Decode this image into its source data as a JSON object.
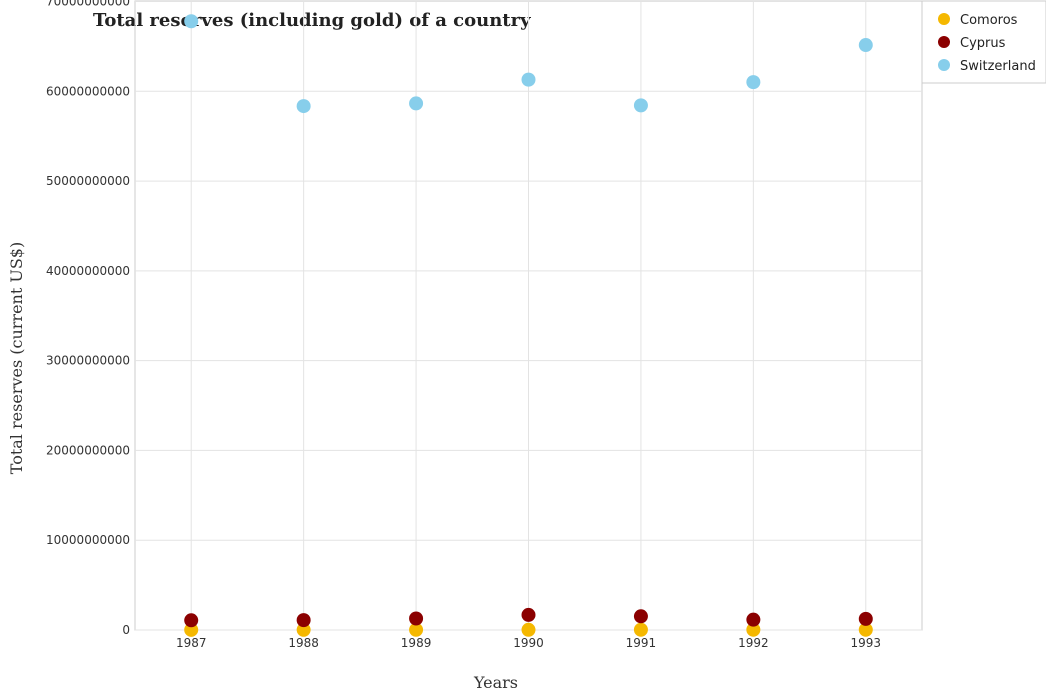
{
  "chart_data": {
    "type": "scatter",
    "title": "Total reserves (including gold) of a country",
    "xlabel": "Years",
    "ylabel": "Total reserves (current US$)",
    "categories": [
      "1987",
      "1988",
      "1989",
      "1990",
      "1991",
      "1992",
      "1993"
    ],
    "ylim": [
      0,
      70000000000
    ],
    "yticks": [
      0,
      10000000000,
      20000000000,
      30000000000,
      40000000000,
      50000000000,
      60000000000,
      70000000000
    ],
    "ytick_labels": [
      "0",
      "10000000000",
      "20000000000",
      "30000000000",
      "40000000000",
      "50000000000",
      "60000000000",
      "70000000000"
    ],
    "grid": true,
    "legend_position": "top-right",
    "series": [
      {
        "name": "Comoros",
        "color": "#f5b800",
        "values": [
          20000000,
          22000000,
          25000000,
          25000000,
          30000000,
          30000000,
          30000000
        ]
      },
      {
        "name": "Cyprus",
        "color": "#8b0000",
        "values": [
          1080000000,
          1100000000,
          1280000000,
          1680000000,
          1530000000,
          1150000000,
          1240000000
        ]
      },
      {
        "name": "Switzerland",
        "color": "#87ceeb",
        "values": [
          67800000000,
          58350000000,
          58650000000,
          61300000000,
          58430000000,
          61020000000,
          65150000000
        ]
      }
    ]
  }
}
